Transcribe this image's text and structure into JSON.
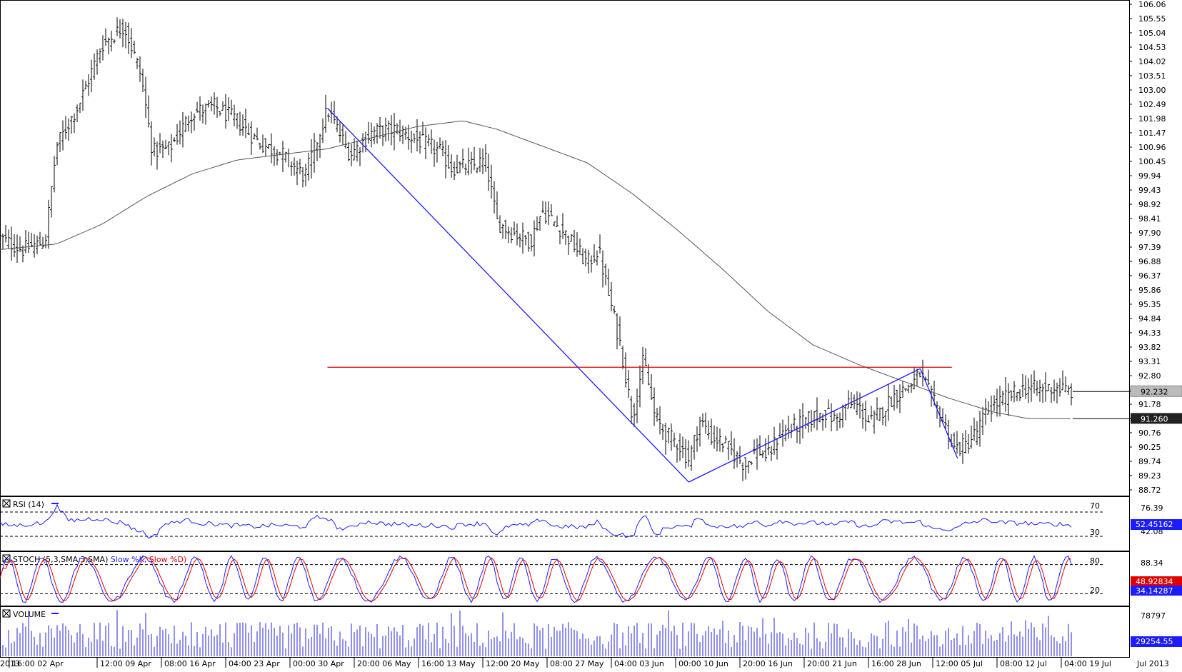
{
  "chart_data": {
    "type": "candlestick_ohlc",
    "main": {
      "y_ticks": [
        "106.06",
        "105.55",
        "105.04",
        "104.53",
        "104.02",
        "103.51",
        "103.00",
        "102.49",
        "101.98",
        "101.47",
        "100.96",
        "100.45",
        "99.94",
        "99.43",
        "98.92",
        "98.41",
        "97.90",
        "97.39",
        "96.88",
        "96.37",
        "95.86",
        "95.35",
        "94.84",
        "94.33",
        "93.82",
        "93.31",
        "92.80",
        "92.29",
        "91.78",
        "91.27",
        "90.76",
        "90.25",
        "89.74",
        "89.23",
        "88.72"
      ],
      "ylim": [
        88.72,
        106.06
      ],
      "last_price": "92.232",
      "ma_value": "91.260",
      "horizontal_line_level": 93.1,
      "trend_lines": [
        {
          "from": {
            "x": 0.29,
            "y": 102.35
          },
          "to": {
            "x": 0.61,
            "y": 89.0
          }
        },
        {
          "from": {
            "x": 0.61,
            "y": 89.0
          },
          "to": {
            "x": 0.815,
            "y": 93.05
          }
        },
        {
          "from": {
            "x": 0.815,
            "y": 93.05
          },
          "to": {
            "x": 0.848,
            "y": 89.85
          }
        }
      ],
      "price_path": [
        [
          0.0,
          97.7
        ],
        [
          0.02,
          97.3
        ],
        [
          0.04,
          97.6
        ],
        [
          0.05,
          101.0
        ],
        [
          0.07,
          102.5
        ],
        [
          0.09,
          104.6
        ],
        [
          0.11,
          105.3
        ],
        [
          0.125,
          103.5
        ],
        [
          0.135,
          100.8
        ],
        [
          0.15,
          100.9
        ],
        [
          0.17,
          102.2
        ],
        [
          0.19,
          102.4
        ],
        [
          0.21,
          101.9
        ],
        [
          0.23,
          101.1
        ],
        [
          0.25,
          100.7
        ],
        [
          0.27,
          99.9
        ],
        [
          0.29,
          102.3
        ],
        [
          0.31,
          100.7
        ],
        [
          0.33,
          101.5
        ],
        [
          0.35,
          101.6
        ],
        [
          0.37,
          101.2
        ],
        [
          0.39,
          100.8
        ],
        [
          0.4,
          100.2
        ],
        [
          0.42,
          100.3
        ],
        [
          0.43,
          100.5
        ],
        [
          0.44,
          98.3
        ],
        [
          0.45,
          98.0
        ],
        [
          0.47,
          97.6
        ],
        [
          0.48,
          98.7
        ],
        [
          0.5,
          97.9
        ],
        [
          0.52,
          96.8
        ],
        [
          0.53,
          97.3
        ],
        [
          0.54,
          95.5
        ],
        [
          0.55,
          93.8
        ],
        [
          0.56,
          91.3
        ],
        [
          0.57,
          93.4
        ],
        [
          0.58,
          91.3
        ],
        [
          0.59,
          90.7
        ],
        [
          0.6,
          90.4
        ],
        [
          0.61,
          89.8
        ],
        [
          0.62,
          91.2
        ],
        [
          0.63,
          90.6
        ],
        [
          0.64,
          90.4
        ],
        [
          0.65,
          90.0
        ],
        [
          0.66,
          89.6
        ],
        [
          0.67,
          90.2
        ],
        [
          0.68,
          89.9
        ],
        [
          0.69,
          90.7
        ],
        [
          0.7,
          90.9
        ],
        [
          0.71,
          91.1
        ],
        [
          0.72,
          91.3
        ],
        [
          0.73,
          91.5
        ],
        [
          0.74,
          91.2
        ],
        [
          0.75,
          91.8
        ],
        [
          0.76,
          91.7
        ],
        [
          0.77,
          91.1
        ],
        [
          0.78,
          91.5
        ],
        [
          0.79,
          92.0
        ],
        [
          0.8,
          92.3
        ],
        [
          0.81,
          92.6
        ],
        [
          0.815,
          92.9
        ],
        [
          0.825,
          92.0
        ],
        [
          0.835,
          91.2
        ],
        [
          0.845,
          90.2
        ],
        [
          0.855,
          90.3
        ],
        [
          0.865,
          90.8
        ],
        [
          0.875,
          91.6
        ],
        [
          0.89,
          92.0
        ],
        [
          0.9,
          92.2
        ],
        [
          0.91,
          92.4
        ],
        [
          0.92,
          92.3
        ],
        [
          0.935,
          92.4
        ],
        [
          0.95,
          92.2
        ]
      ],
      "ma_path": [
        [
          0.0,
          97.3
        ],
        [
          0.05,
          97.5
        ],
        [
          0.09,
          98.2
        ],
        [
          0.13,
          99.2
        ],
        [
          0.17,
          100.0
        ],
        [
          0.21,
          100.5
        ],
        [
          0.25,
          100.7
        ],
        [
          0.29,
          100.9
        ],
        [
          0.33,
          101.3
        ],
        [
          0.37,
          101.7
        ],
        [
          0.41,
          101.9
        ],
        [
          0.44,
          101.6
        ],
        [
          0.48,
          101.0
        ],
        [
          0.52,
          100.4
        ],
        [
          0.56,
          99.3
        ],
        [
          0.6,
          98.0
        ],
        [
          0.64,
          96.6
        ],
        [
          0.68,
          95.1
        ],
        [
          0.72,
          93.9
        ],
        [
          0.76,
          93.2
        ],
        [
          0.8,
          92.6
        ],
        [
          0.84,
          92.0
        ],
        [
          0.88,
          91.5
        ],
        [
          0.91,
          91.27
        ],
        [
          0.95,
          91.26
        ]
      ]
    },
    "x_ticks": [
      "2013",
      "16:00 02 Apr",
      "12:00 09 Apr",
      "08:00 16 Apr",
      "04:00 23 Apr",
      "00:00 30 Apr",
      "20:00 06 May",
      "16:00 13 May",
      "12:00 20 May",
      "08:00 27 May",
      "04:00 03 Jun",
      "00:00 10 Jun",
      "20:00 16 Jun",
      "20:00 21 Jun",
      "16:00 28 Jun",
      "12:00 05 Jul",
      "08:00 12 Jul",
      "04:00 19 Jul",
      "Jul 2013"
    ],
    "rsi": {
      "title": "RSI (14)",
      "levels": [
        "70",
        "30"
      ],
      "y_ticks": [
        "76.39",
        "42.08"
      ],
      "value": "52.45162"
    },
    "stoch": {
      "title_prefix": "STOCH (5,3,SMA,3,SMA)",
      "k_label": "Slow %K,",
      "d_label": "Slow %D)",
      "levels": [
        "80",
        "20"
      ],
      "y_tick": "88.34",
      "k_value": "48.92834",
      "d_value": "34.14287"
    },
    "volume": {
      "title": "VOLUME",
      "y_tick": "78797",
      "value": "29254.55"
    }
  },
  "colors": {
    "bar": "#000000",
    "ma": "#555555",
    "trend": "#1c1cff",
    "hline": "#e00000",
    "rsi": "#1c1cff",
    "stoch_k": "#1c1cff",
    "stoch_d": "#e00000",
    "volume": "#2222dd",
    "tag_blue": "#1c1cff",
    "tag_red": "#e00000",
    "tag_dark": "#222222",
    "tag_gray": "#bbbbbb"
  }
}
